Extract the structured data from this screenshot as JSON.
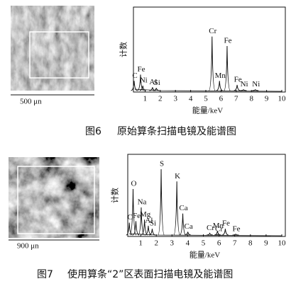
{
  "figures": [
    {
      "scale_bar": "500 μn",
      "number": "图6",
      "caption": "原始算条扫描电镜及能谱图"
    },
    {
      "scale_bar": "900 μn",
      "number": "图7",
      "caption": "使用算条“2”区表面扫描电镜及能谱图"
    }
  ],
  "chart_data": [
    {
      "type": "spectrum",
      "x_label": "能量/keV",
      "y_label": "计数",
      "xlim": [
        0,
        10
      ],
      "xticks": [
        1,
        2,
        3,
        4,
        5,
        6,
        7,
        8,
        9,
        10
      ],
      "ylim": [
        0,
        100
      ],
      "color": "#111111",
      "peaks": [
        {
          "label": "C",
          "energy": 0.28,
          "height": 14
        },
        {
          "label": "Fe",
          "energy": 0.7,
          "height": 22
        },
        {
          "label": "Ni",
          "energy": 0.85,
          "height": 8
        },
        {
          "label": "Al",
          "energy": 1.49,
          "height": 6
        },
        {
          "label": "Si",
          "energy": 1.74,
          "height": 5
        },
        {
          "label": "Cr",
          "energy": 5.41,
          "height": 70
        },
        {
          "label": "Mn",
          "energy": 5.9,
          "height": 14
        },
        {
          "label": "Fe",
          "energy": 6.4,
          "height": 58
        },
        {
          "label": "Fe",
          "energy": 7.06,
          "height": 9
        },
        {
          "label": "Ni",
          "energy": 7.48,
          "height": 3
        },
        {
          "label": "Ni",
          "energy": 8.26,
          "height": 3
        }
      ]
    },
    {
      "type": "spectrum",
      "x_label": "能量/keV",
      "y_label": "计数",
      "xlim": [
        0,
        10
      ],
      "xticks": [
        1,
        2,
        3,
        4,
        5,
        6,
        7,
        8,
        9,
        10
      ],
      "ylim": [
        0,
        100
      ],
      "color": "#111111",
      "peaks": [
        {
          "label": "C",
          "energy": 0.28,
          "height": 18
        },
        {
          "label": "O",
          "energy": 0.52,
          "height": 62
        },
        {
          "label": "Fe",
          "energy": 0.7,
          "height": 20
        },
        {
          "label": "Na",
          "energy": 1.04,
          "height": 38
        },
        {
          "label": "Mg",
          "energy": 1.25,
          "height": 22
        },
        {
          "label": "Al",
          "energy": 1.49,
          "height": 14
        },
        {
          "label": "Si",
          "energy": 1.74,
          "height": 10
        },
        {
          "label": "S",
          "energy": 2.31,
          "height": 88
        },
        {
          "label": "K",
          "energy": 3.31,
          "height": 72
        },
        {
          "label": "Ca",
          "energy": 3.69,
          "height": 30
        },
        {
          "label": "Ca",
          "energy": 4.01,
          "height": 6
        },
        {
          "label": "Cr",
          "energy": 5.41,
          "height": 4
        },
        {
          "label": "Cr",
          "energy": 5.95,
          "height": 3
        },
        {
          "label": "Mn",
          "energy": 5.9,
          "height": 7
        },
        {
          "label": "Fe",
          "energy": 6.4,
          "height": 10
        },
        {
          "label": "Fe",
          "energy": 7.06,
          "height": 3
        }
      ]
    }
  ]
}
